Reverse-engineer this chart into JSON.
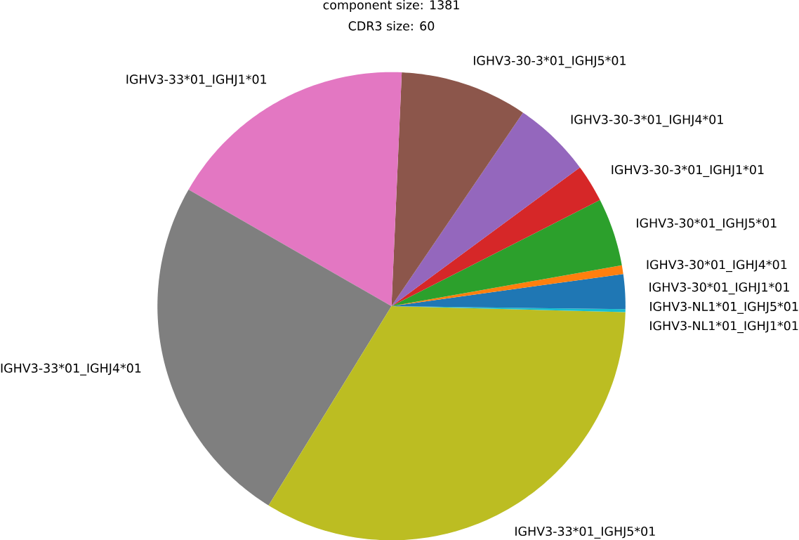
{
  "chart_data": {
    "type": "pie",
    "title": "component size: 1381",
    "subtitle": "CDR3 size: 60",
    "categories": [
      "IGHV3-30*01_IGHJ1*01",
      "IGHV3-30*01_IGHJ4*01",
      "IGHV3-30*01_IGHJ5*01",
      "IGHV3-30-3*01_IGHJ1*01",
      "IGHV3-30-3*01_IGHJ4*01",
      "IGHV3-30-3*01_IGHJ5*01",
      "IGHV3-33*01_IGHJ1*01",
      "IGHV3-33*01_IGHJ4*01",
      "IGHV3-33*01_IGHJ5*01",
      "IGHV3-NL1*01_IGHJ1*01",
      "IGHV3-NL1*01_IGHJ5*01"
    ],
    "values": [
      2.2,
      0.6,
      4.7,
      2.6,
      5.4,
      8.8,
      17.4,
      24.5,
      33.4,
      0.2,
      0.2
    ],
    "colors": [
      "#1f77b4",
      "#ff7f0e",
      "#2ca02c",
      "#d62728",
      "#9467bd",
      "#8c564b",
      "#e377c2",
      "#7f7f7f",
      "#bcbd22",
      "#17becf",
      "#1f77b4"
    ]
  }
}
